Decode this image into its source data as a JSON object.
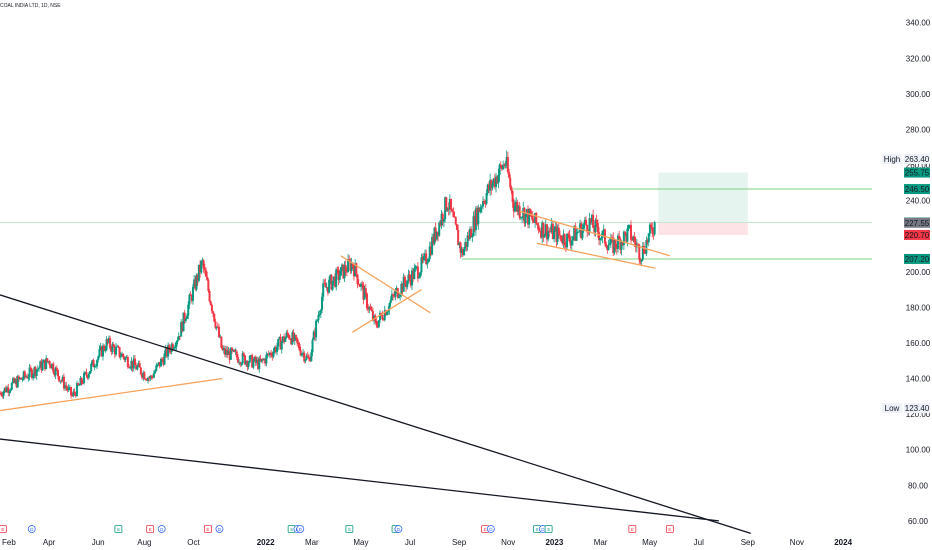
{
  "chart_data": {
    "type": "candlestick",
    "title": "COAL INDIA LTD, 1D, NSE",
    "y_ticks": [
      60,
      80,
      100,
      120,
      140,
      160,
      180,
      200,
      220,
      240,
      260,
      280,
      300,
      320,
      340
    ],
    "y_tick_labels": [
      "60.00",
      "80.00",
      "100.00",
      "120.00",
      "140.00",
      "160.00",
      "180.00",
      "200.00",
      "220.00",
      "240.00",
      "260.00",
      "280.00",
      "300.00",
      "320.00",
      "340.00"
    ],
    "x_ticks": [
      "Feb",
      "Apr",
      "Jun",
      "Aug",
      "Oct",
      "2022",
      "Mar",
      "May",
      "Jul",
      "Sep",
      "Nov",
      "2023",
      "Mar",
      "May",
      "Jul",
      "Sep",
      "Nov",
      "2024"
    ],
    "x_tick_positions": [
      2021.08,
      2021.25,
      2021.42,
      2021.58,
      2021.75,
      2022.0,
      2022.16,
      2022.33,
      2022.5,
      2022.67,
      2022.84,
      2023.0,
      2023.16,
      2023.33,
      2023.5,
      2023.67,
      2023.84,
      2024.0
    ],
    "ylim": [
      56,
      346
    ],
    "xlim": [
      2021.08,
      2024.1
    ],
    "price_markers": [
      {
        "label": "High",
        "value": "263.40",
        "color": "#eef1f7",
        "text_color": "#131722"
      },
      {
        "value": "255.75",
        "color": "#089981",
        "text_color": "#ffffff"
      },
      {
        "value": "246.50",
        "color": "#089981",
        "text_color": "#ffffff"
      },
      {
        "value": "227.70",
        "color": "#089981",
        "text_color": "#ffffff"
      },
      {
        "value": "227.55",
        "color": "#787b86",
        "text_color": "#ffffff"
      },
      {
        "value": "220.70",
        "color": "#f23645",
        "text_color": "#ffffff"
      },
      {
        "value": "207.20",
        "color": "#089981",
        "text_color": "#ffffff"
      },
      {
        "label": "Low",
        "value": "123.40",
        "color": "#eef1f7",
        "text_color": "#131722"
      }
    ],
    "price_anchor_path": [
      [
        2021.08,
        132
      ],
      [
        2021.25,
        150
      ],
      [
        2021.33,
        130
      ],
      [
        2021.45,
        160
      ],
      [
        2021.6,
        140
      ],
      [
        2021.7,
        165
      ],
      [
        2021.78,
        205
      ],
      [
        2021.85,
        155
      ],
      [
        2021.98,
        148
      ],
      [
        2022.08,
        165
      ],
      [
        2022.15,
        150
      ],
      [
        2022.2,
        190
      ],
      [
        2022.3,
        205
      ],
      [
        2022.38,
        170
      ],
      [
        2022.46,
        190
      ],
      [
        2022.55,
        205
      ],
      [
        2022.63,
        240
      ],
      [
        2022.68,
        210
      ],
      [
        2022.75,
        240
      ],
      [
        2022.83,
        262
      ],
      [
        2022.86,
        238
      ],
      [
        2022.95,
        225
      ],
      [
        2023.05,
        218
      ],
      [
        2023.12,
        228
      ],
      [
        2023.2,
        214
      ],
      [
        2023.26,
        222
      ],
      [
        2023.3,
        210
      ],
      [
        2023.35,
        228
      ]
    ],
    "horizontal_levels": [
      {
        "value": 246.5,
        "from": 2022.85,
        "to": 2024.1,
        "color": "#7fd17f"
      },
      {
        "value": 207.2,
        "from": 2022.68,
        "to": 2024.1,
        "color": "#7fd17f"
      },
      {
        "value": 227.7,
        "from": 2021.08,
        "to": 2024.1,
        "color": "#c8e6d4"
      }
    ],
    "position_zones": [
      {
        "type": "target",
        "from": 2023.36,
        "to": 2023.67,
        "y1": 227.7,
        "y2": 255.75,
        "color": "#e6f4ef"
      },
      {
        "type": "stop",
        "from": 2023.36,
        "to": 2023.67,
        "y1": 220.7,
        "y2": 227.7,
        "color": "#fde3e6"
      }
    ],
    "trendlines": [
      {
        "color": "#131722",
        "points": [
          [
            2021.08,
            187
          ],
          [
            2023.68,
            53
          ]
        ]
      },
      {
        "color": "#131722",
        "points": [
          [
            2021.08,
            106
          ],
          [
            2023.57,
            60
          ]
        ]
      },
      {
        "color": "#f7a35c",
        "points": [
          [
            2021.08,
            122
          ],
          [
            2021.85,
            140
          ]
        ]
      },
      {
        "color": "#f7a35c",
        "points": [
          [
            2022.26,
            209
          ],
          [
            2022.57,
            177
          ]
        ]
      },
      {
        "color": "#f7a35c",
        "points": [
          [
            2022.3,
            166
          ],
          [
            2022.54,
            190
          ]
        ]
      },
      {
        "color": "#f7a35c",
        "points": [
          [
            2022.88,
            234
          ],
          [
            2023.4,
            209
          ]
        ]
      },
      {
        "color": "#f7a35c",
        "points": [
          [
            2022.94,
            216
          ],
          [
            2023.35,
            202
          ]
        ]
      }
    ],
    "event_markers": [
      {
        "x": 2021.09,
        "icon": "E",
        "color": "#f23645"
      },
      {
        "x": 2021.19,
        "icon": "D",
        "color": "#2962ff"
      },
      {
        "x": 2021.49,
        "icon": "S",
        "color": "#089981"
      },
      {
        "x": 2021.6,
        "icon": "E",
        "color": "#f23645"
      },
      {
        "x": 2021.64,
        "icon": "D",
        "color": "#2962ff"
      },
      {
        "x": 2021.8,
        "icon": "E",
        "color": "#f23645"
      },
      {
        "x": 2021.84,
        "icon": "D",
        "color": "#2962ff"
      },
      {
        "x": 2022.09,
        "icon": "S",
        "color": "#089981"
      },
      {
        "x": 2022.11,
        "icon": "D",
        "color": "#2962ff"
      },
      {
        "x": 2022.12,
        "icon": "D",
        "color": "#2962ff"
      },
      {
        "x": 2022.29,
        "icon": "S",
        "color": "#089981"
      },
      {
        "x": 2022.45,
        "icon": "S",
        "color": "#089981"
      },
      {
        "x": 2022.46,
        "icon": "D",
        "color": "#2962ff"
      },
      {
        "x": 2022.76,
        "icon": "E",
        "color": "#f23645"
      },
      {
        "x": 2022.78,
        "icon": "D",
        "color": "#2962ff"
      },
      {
        "x": 2022.94,
        "icon": "S",
        "color": "#089981"
      },
      {
        "x": 2022.96,
        "icon": "D",
        "color": "#2962ff"
      },
      {
        "x": 2022.98,
        "icon": "S",
        "color": "#089981"
      },
      {
        "x": 2023.27,
        "icon": "E",
        "color": "#f23645"
      },
      {
        "x": 2023.4,
        "icon": "E",
        "color": "#f23645"
      }
    ],
    "colors": {
      "up": "#089981",
      "down": "#f23645",
      "axis_text": "#131722"
    }
  }
}
